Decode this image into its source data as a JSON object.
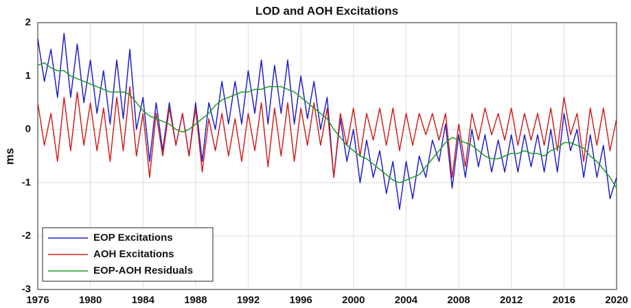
{
  "chart_data": {
    "type": "line",
    "title": "LOD and AOH Excitations",
    "y_label": "ms",
    "x": [
      1976,
      1976.5,
      1977,
      1977.5,
      1978,
      1978.5,
      1979,
      1979.5,
      1980,
      1980.5,
      1981,
      1981.5,
      1982,
      1982.5,
      1983,
      1983.5,
      1984,
      1984.5,
      1985,
      1985.5,
      1986,
      1986.5,
      1987,
      1987.5,
      1988,
      1988.5,
      1989,
      1989.5,
      1990,
      1990.5,
      1991,
      1991.5,
      1992,
      1992.5,
      1993,
      1993.5,
      1994,
      1994.5,
      1995,
      1995.5,
      1996,
      1996.5,
      1997,
      1997.5,
      1998,
      1998.5,
      1999,
      1999.5,
      2000,
      2000.5,
      2001,
      2001.5,
      2002,
      2002.5,
      2003,
      2003.5,
      2004,
      2004.5,
      2005,
      2005.5,
      2006,
      2006.5,
      2007,
      2007.5,
      2008,
      2008.5,
      2009,
      2009.5,
      2010,
      2010.5,
      2011,
      2011.5,
      2012,
      2012.5,
      2013,
      2013.5,
      2014,
      2014.5,
      2015,
      2015.5,
      2016,
      2016.5,
      2017,
      2017.5,
      2018,
      2018.5,
      2019,
      2019.5,
      2020
    ],
    "series": [
      {
        "name": "EOP Excitations",
        "color": "#1f1fc8",
        "values": [
          1.7,
          0.9,
          1.5,
          0.6,
          1.8,
          0.6,
          1.6,
          0.5,
          1.3,
          0.3,
          1.1,
          0.1,
          1.3,
          0.2,
          1.5,
          0.0,
          0.6,
          -0.6,
          0.5,
          -0.4,
          0.5,
          -0.3,
          0.3,
          -0.5,
          0.5,
          -0.6,
          0.5,
          0.0,
          0.9,
          0.1,
          0.9,
          0.1,
          1.1,
          0.3,
          1.3,
          0.1,
          1.2,
          0.3,
          1.3,
          0.1,
          1.0,
          0.2,
          0.9,
          0.0,
          0.6,
          -0.9,
          0.2,
          -0.6,
          0.0,
          -1.0,
          -0.2,
          -0.9,
          -0.4,
          -1.2,
          -0.6,
          -1.5,
          -0.6,
          -1.3,
          -0.5,
          -0.9,
          -0.2,
          -0.6,
          0.1,
          -1.1,
          -0.1,
          -0.9,
          0.0,
          -0.7,
          -0.1,
          -0.8,
          -0.2,
          -0.8,
          -0.1,
          -0.8,
          -0.1,
          -0.7,
          -0.1,
          -0.8,
          0.0,
          -0.8,
          0.3,
          -0.4,
          0.0,
          -0.9,
          -0.1,
          -0.9,
          -0.3,
          -1.3,
          -0.9
        ]
      },
      {
        "name": "AOH Excitations",
        "color": "#d02020",
        "values": [
          0.5,
          -0.3,
          0.3,
          -0.6,
          0.6,
          -0.4,
          0.7,
          -0.3,
          0.5,
          -0.4,
          0.4,
          -0.6,
          0.6,
          -0.4,
          0.8,
          -0.5,
          0.3,
          -0.9,
          0.3,
          -0.5,
          0.4,
          -0.3,
          0.3,
          -0.5,
          0.4,
          -0.8,
          0.2,
          -0.4,
          0.3,
          -0.5,
          0.2,
          -0.6,
          0.3,
          -0.4,
          0.5,
          -0.7,
          0.4,
          -0.5,
          0.5,
          -0.6,
          0.4,
          -0.3,
          0.5,
          -0.3,
          0.4,
          -0.9,
          0.3,
          -0.3,
          0.4,
          -0.5,
          0.3,
          -0.2,
          0.4,
          -0.3,
          0.4,
          -0.4,
          0.3,
          -0.3,
          0.3,
          -0.1,
          0.3,
          -0.2,
          0.3,
          -0.9,
          0.1,
          -0.7,
          0.3,
          -0.2,
          0.4,
          -0.1,
          0.3,
          -0.2,
          0.4,
          -0.3,
          0.3,
          -0.2,
          0.3,
          -0.3,
          0.4,
          -0.4,
          0.6,
          -0.1,
          0.3,
          -0.6,
          0.4,
          -0.3,
          0.4,
          -0.4,
          0.2
        ]
      },
      {
        "name": "EOP-AOH Residuals",
        "color": "#1e9a1e",
        "values": [
          1.2,
          1.25,
          1.15,
          1.1,
          1.1,
          1.0,
          0.95,
          0.9,
          0.85,
          0.8,
          0.75,
          0.7,
          0.7,
          0.7,
          0.65,
          0.5,
          0.35,
          0.25,
          0.2,
          0.15,
          0.1,
          0.0,
          -0.05,
          0.0,
          0.1,
          0.2,
          0.3,
          0.45,
          0.55,
          0.6,
          0.65,
          0.7,
          0.7,
          0.75,
          0.75,
          0.8,
          0.8,
          0.8,
          0.75,
          0.7,
          0.6,
          0.5,
          0.4,
          0.3,
          0.2,
          0.0,
          -0.15,
          -0.3,
          -0.4,
          -0.5,
          -0.55,
          -0.65,
          -0.75,
          -0.85,
          -0.95,
          -1.0,
          -0.95,
          -0.9,
          -0.85,
          -0.7,
          -0.55,
          -0.4,
          -0.25,
          -0.15,
          -0.2,
          -0.25,
          -0.3,
          -0.4,
          -0.5,
          -0.55,
          -0.55,
          -0.5,
          -0.45,
          -0.45,
          -0.4,
          -0.45,
          -0.45,
          -0.5,
          -0.4,
          -0.35,
          -0.25,
          -0.25,
          -0.3,
          -0.35,
          -0.5,
          -0.6,
          -0.75,
          -0.9,
          -1.1
        ]
      }
    ],
    "xlim": [
      1976,
      2020
    ],
    "xticks": [
      1976,
      1980,
      1984,
      1988,
      1992,
      1996,
      2000,
      2004,
      2008,
      2012,
      2016,
      2020
    ],
    "ylim": [
      -3,
      2
    ],
    "yticks": [
      -3,
      -2,
      -1,
      0,
      1,
      2
    ],
    "grid": true,
    "legend": "lower left"
  }
}
